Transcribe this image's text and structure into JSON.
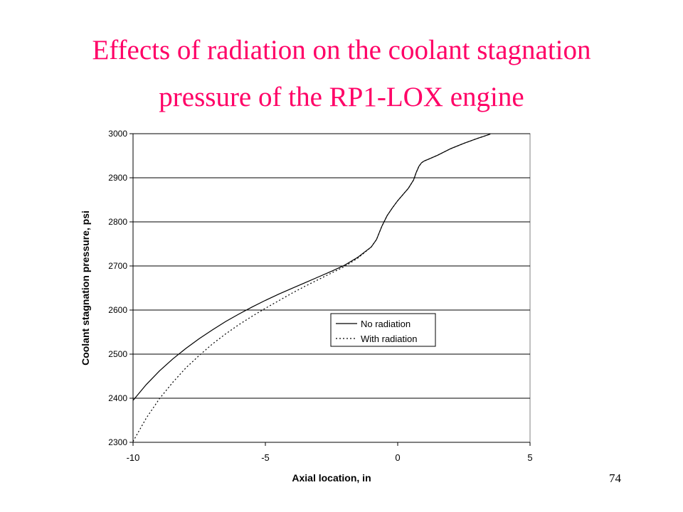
{
  "slide": {
    "title_line1": "Effects of radiation on the coolant stagnation",
    "title_line2": "pressure of the RP1-LOX engine",
    "page_number": "74",
    "title_color": "#ff0066"
  },
  "chart_data": {
    "type": "line",
    "title": "",
    "xlabel": "Axial location, in",
    "ylabel": "Coolant stagnation pressure, psi",
    "xlim": [
      -10,
      5
    ],
    "ylim": [
      2300,
      3000
    ],
    "xticks": [
      -10,
      -5,
      0,
      5
    ],
    "xtick_labels": [
      "-10",
      "-5",
      "0",
      "5"
    ],
    "yticks": [
      2300,
      2400,
      2500,
      2600,
      2700,
      2800,
      2900,
      3000
    ],
    "ytick_labels": [
      "2300",
      "2400",
      "2500",
      "2600",
      "2700",
      "2800",
      "2900",
      "3000"
    ],
    "grid": "horizontal",
    "legend_position": "center-right",
    "series": [
      {
        "name": "No radiation",
        "style": "solid",
        "color": "#000000",
        "x": [
          -10.0,
          -9.5,
          -9.0,
          -8.5,
          -8.0,
          -7.5,
          -7.0,
          -6.5,
          -6.0,
          -5.5,
          -5.0,
          -4.5,
          -4.0,
          -3.5,
          -3.0,
          -2.5,
          -2.0,
          -1.5,
          -1.0,
          -0.8,
          -0.6,
          -0.4,
          -0.2,
          0.0,
          0.2,
          0.4,
          0.6,
          0.7,
          0.8,
          0.9,
          1.0,
          1.2,
          1.5,
          2.0,
          2.5,
          3.0,
          3.5
        ],
        "y": [
          2395,
          2431,
          2462,
          2489,
          2513,
          2535,
          2555,
          2574,
          2591,
          2607,
          2622,
          2636,
          2649,
          2662,
          2675,
          2688,
          2702,
          2720,
          2743,
          2760,
          2790,
          2814,
          2832,
          2848,
          2862,
          2876,
          2895,
          2912,
          2926,
          2934,
          2938,
          2943,
          2951,
          2966,
          2978,
          2989,
          2999
        ]
      },
      {
        "name": "With radiation",
        "style": "dotted",
        "color": "#000000",
        "x": [
          -10.0,
          -9.5,
          -9.0,
          -8.5,
          -8.0,
          -7.5,
          -7.0,
          -6.5,
          -6.0,
          -5.5,
          -5.0,
          -4.5,
          -4.0,
          -3.5,
          -3.0,
          -2.5,
          -2.0,
          -1.5,
          -1.0,
          -0.8,
          -0.6,
          -0.4,
          -0.2,
          0.0,
          0.2,
          0.4,
          0.6,
          0.7,
          0.8,
          0.9,
          1.0,
          1.2,
          1.5,
          2.0,
          2.5,
          3.0,
          3.5
        ],
        "y": [
          2302,
          2355,
          2399,
          2436,
          2469,
          2497,
          2523,
          2546,
          2567,
          2586,
          2604,
          2621,
          2638,
          2654,
          2669,
          2684,
          2699,
          2718,
          2743,
          2760,
          2790,
          2814,
          2832,
          2848,
          2862,
          2876,
          2895,
          2912,
          2926,
          2934,
          2938,
          2943,
          2951,
          2966,
          2978,
          2989,
          2999
        ]
      }
    ]
  }
}
